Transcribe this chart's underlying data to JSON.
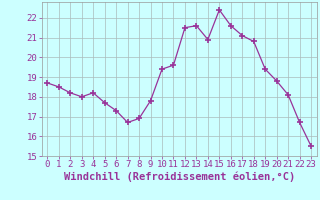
{
  "x": [
    0,
    1,
    2,
    3,
    4,
    5,
    6,
    7,
    8,
    9,
    10,
    11,
    12,
    13,
    14,
    15,
    16,
    17,
    18,
    19,
    20,
    21,
    22,
    23
  ],
  "y": [
    18.7,
    18.5,
    18.2,
    18.0,
    18.2,
    17.7,
    17.3,
    16.7,
    16.9,
    17.8,
    19.4,
    19.6,
    21.5,
    21.6,
    20.9,
    22.4,
    21.6,
    21.1,
    20.8,
    19.4,
    18.8,
    18.1,
    16.7,
    15.5
  ],
  "line_color": "#993399",
  "marker": "+",
  "marker_size": 4,
  "bg_color": "#ccffff",
  "grid_color": "#aabbbb",
  "xlabel": "Windchill (Refroidissement éolien,°C)",
  "xlim_min": -0.5,
  "xlim_max": 23.5,
  "ylim_min": 15.0,
  "ylim_max": 22.8,
  "yticks": [
    15,
    16,
    17,
    18,
    19,
    20,
    21,
    22
  ],
  "xticks": [
    0,
    1,
    2,
    3,
    4,
    5,
    6,
    7,
    8,
    9,
    10,
    11,
    12,
    13,
    14,
    15,
    16,
    17,
    18,
    19,
    20,
    21,
    22,
    23
  ],
  "line_color_hex": "#993399",
  "tick_fontsize": 6.5,
  "xlabel_fontsize": 7.5,
  "spine_color": "#999999"
}
